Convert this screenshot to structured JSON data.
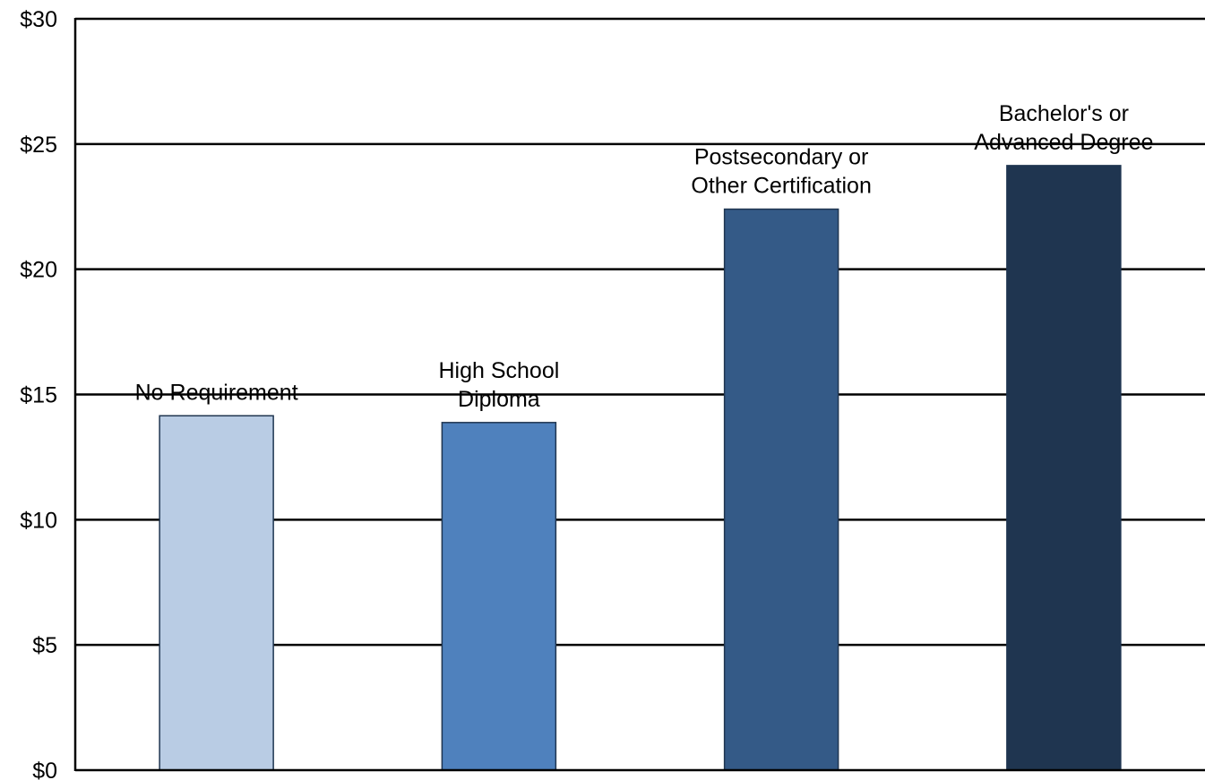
{
  "chart_data": {
    "type": "bar",
    "title": "",
    "xlabel": "",
    "ylabel": "",
    "ylim": [
      0,
      30
    ],
    "yticks": [
      {
        "value": 0,
        "label": "$0"
      },
      {
        "value": 5,
        "label": "$5"
      },
      {
        "value": 10,
        "label": "$10"
      },
      {
        "value": 15,
        "label": "$15"
      },
      {
        "value": 20,
        "label": "$20"
      },
      {
        "value": 25,
        "label": "$25"
      },
      {
        "value": 30,
        "label": "$30"
      }
    ],
    "grid": true,
    "legend": "none",
    "categories": [
      {
        "label_lines": [
          "No Requirement"
        ]
      },
      {
        "label_lines": [
          "High School",
          "Diploma"
        ]
      },
      {
        "label_lines": [
          "Postsecondary or",
          "Other Certification"
        ]
      },
      {
        "label_lines": [
          "Bachelor's or",
          "Advanced Degree"
        ]
      }
    ],
    "values": [
      14.15,
      13.88,
      22.4,
      24.14
    ],
    "colors": [
      "#b9cce4",
      "#4f81bd",
      "#345a87",
      "#1f3550"
    ]
  }
}
